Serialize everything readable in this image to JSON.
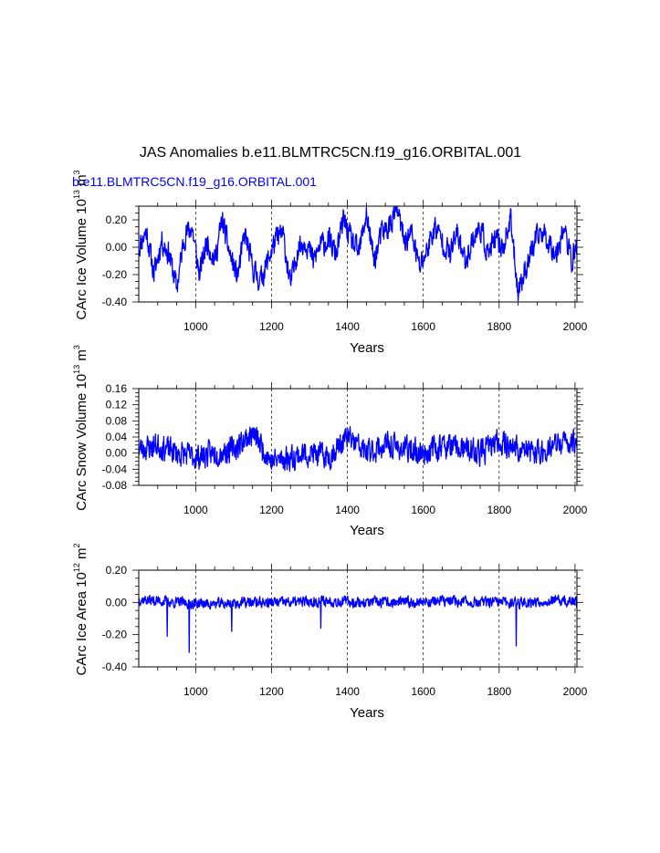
{
  "figure": {
    "title": "JAS Anomalies b.e11.BLMTRC5CN.f19_g16.ORBITAL.001",
    "subtitle": "b.e11.BLMTRC5CN.f19_g16.ORBITAL.001",
    "series_color": "#0000ff"
  },
  "chart_data": [
    {
      "type": "line",
      "id": "ice-volume",
      "title": "",
      "xlabel": "Years",
      "ylabel": "CArc Ice Volume 10^13 m^3",
      "ylabel_parts": {
        "pre": "CArc Ice Volume 10",
        "exp1": "13",
        "mid": " m",
        "exp2": "3"
      },
      "xlim": [
        850,
        2005
      ],
      "ylim": [
        -0.4,
        0.3
      ],
      "yticks": [
        -0.4,
        -0.2,
        0.0,
        0.2
      ],
      "ytick_labels": [
        "-0.40",
        "-0.20",
        "0.00",
        "0.20"
      ],
      "xticks": [
        1000,
        1200,
        1400,
        1600,
        1800,
        2000
      ],
      "xtick_labels": [
        "1000",
        "1200",
        "1400",
        "1600",
        "1800",
        "2000"
      ],
      "grid_x": true,
      "series": [
        {
          "name": "b.e11.BLMTRC5CN.f19_g16.ORBITAL.001",
          "anchors": {
            "x": [
              850,
              870,
              890,
              910,
              930,
              950,
              970,
              990,
              1010,
              1030,
              1050,
              1070,
              1090,
              1110,
              1130,
              1150,
              1170,
              1190,
              1210,
              1230,
              1250,
              1270,
              1290,
              1310,
              1330,
              1350,
              1370,
              1390,
              1410,
              1430,
              1450,
              1470,
              1490,
              1510,
              1530,
              1550,
              1570,
              1590,
              1610,
              1630,
              1650,
              1670,
              1690,
              1710,
              1730,
              1750,
              1770,
              1790,
              1810,
              1830,
              1850,
              1870,
              1890,
              1910,
              1930,
              1950,
              1970,
              1990,
              2005
            ],
            "y": [
              0.0,
              0.12,
              -0.2,
              0.05,
              -0.05,
              -0.3,
              0.08,
              0.15,
              -0.2,
              0.05,
              -0.1,
              0.2,
              -0.05,
              -0.22,
              0.1,
              -0.15,
              -0.25,
              -0.1,
              0.05,
              0.1,
              -0.28,
              0.0,
              0.05,
              -0.1,
              0.02,
              0.05,
              -0.05,
              0.2,
              0.05,
              -0.05,
              0.25,
              -0.1,
              0.1,
              0.15,
              0.28,
              0.05,
              0.1,
              -0.15,
              -0.02,
              0.15,
              0.05,
              -0.05,
              0.1,
              -0.1,
              0.05,
              0.15,
              -0.05,
              0.05,
              0.0,
              0.2,
              -0.32,
              -0.15,
              0.0,
              0.12,
              0.05,
              -0.05,
              0.15,
              -0.1,
              0.0
            ]
          },
          "noise_amp": 0.08,
          "seed": 11
        }
      ]
    },
    {
      "type": "line",
      "id": "snow-volume",
      "title": "",
      "xlabel": "Years",
      "ylabel": "CArc Snow Volume 10^13 m^3",
      "ylabel_parts": {
        "pre": "CArc Snow Volume 10",
        "exp1": "13",
        "mid": " m",
        "exp2": "3"
      },
      "xlim": [
        850,
        2005
      ],
      "ylim": [
        -0.08,
        0.16
      ],
      "yticks": [
        -0.08,
        -0.04,
        0.0,
        0.04,
        0.08,
        0.12,
        0.16
      ],
      "ytick_labels": [
        "-0.08",
        "-0.04",
        "0.00",
        "0.04",
        "0.08",
        "0.12",
        "0.16"
      ],
      "xticks": [
        1000,
        1200,
        1400,
        1600,
        1800,
        2000
      ],
      "xtick_labels": [
        "1000",
        "1200",
        "1400",
        "1600",
        "1800",
        "2000"
      ],
      "grid_x": true,
      "series": [
        {
          "name": "b.e11.BLMTRC5CN.f19_g16.ORBITAL.001",
          "anchors": {
            "x": [
              850,
              900,
              950,
              1000,
              1050,
              1100,
              1150,
              1200,
              1250,
              1300,
              1350,
              1400,
              1450,
              1500,
              1550,
              1600,
              1650,
              1700,
              1750,
              1800,
              1850,
              1900,
              1950,
              2005
            ],
            "y": [
              0.01,
              0.02,
              0.0,
              -0.01,
              0.0,
              0.01,
              0.05,
              -0.02,
              -0.01,
              0.0,
              -0.01,
              0.04,
              0.0,
              0.02,
              0.01,
              0.0,
              0.02,
              0.01,
              0.0,
              0.03,
              0.01,
              0.0,
              0.02,
              0.03
            ]
          },
          "noise_amp": 0.028,
          "seed": 23
        }
      ]
    },
    {
      "type": "line",
      "id": "ice-area",
      "title": "",
      "xlabel": "Years",
      "ylabel": "CArc Ice Area 10^12 m^2",
      "ylabel_parts": {
        "pre": "CArc Ice Area 10",
        "exp1": "12",
        "mid": " m",
        "exp2": "2"
      },
      "xlim": [
        850,
        2005
      ],
      "ylim": [
        -0.4,
        0.2
      ],
      "yticks": [
        -0.4,
        -0.2,
        0.0,
        0.2
      ],
      "ytick_labels": [
        "-0.40",
        "-0.20",
        "0.00",
        "0.20"
      ],
      "xticks": [
        1000,
        1200,
        1400,
        1600,
        1800,
        2000
      ],
      "xtick_labels": [
        "1000",
        "1200",
        "1400",
        "1600",
        "1800",
        "2000"
      ],
      "grid_x": true,
      "series": [
        {
          "name": "b.e11.BLMTRC5CN.f19_g16.ORBITAL.001",
          "anchors": {
            "x": [
              850,
              950,
              1050,
              1150,
              1250,
              1350,
              1450,
              1550,
              1650,
              1750,
              1850,
              1950,
              2005
            ],
            "y": [
              0.02,
              0.0,
              -0.01,
              0.0,
              0.0,
              0.01,
              0.0,
              0.0,
              0.01,
              0.0,
              0.0,
              0.01,
              0.0
            ]
          },
          "noise_amp": 0.03,
          "seed": 37,
          "spikes": [
            [
              925,
              -0.21
            ],
            [
              983,
              -0.31
            ],
            [
              1095,
              -0.18
            ],
            [
              1330,
              -0.16
            ],
            [
              1845,
              -0.27
            ]
          ]
        }
      ]
    }
  ]
}
